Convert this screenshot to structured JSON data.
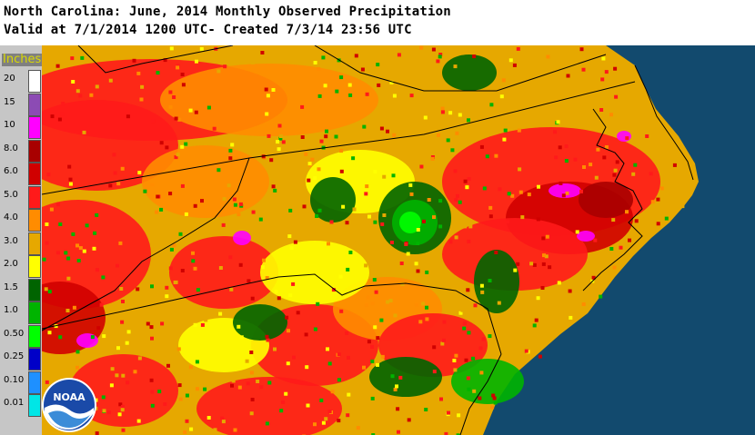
{
  "header": {
    "title_line1": "North Carolina: June, 2014 Monthly Observed Precipitation",
    "title_line2": "Valid at 7/1/2014 1200 UTC- Created 7/3/14 23:56 UTC"
  },
  "legend": {
    "unit": "Inches",
    "items": [
      {
        "label": "20",
        "color": "#ffffff"
      },
      {
        "label": "15",
        "color": "#8c4bb4"
      },
      {
        "label": "10",
        "color": "#ff00ff"
      },
      {
        "label": "8.0",
        "color": "#a80000"
      },
      {
        "label": "6.0",
        "color": "#d00000"
      },
      {
        "label": "5.0",
        "color": "#ff1a1a"
      },
      {
        "label": "4.0",
        "color": "#ff8c00"
      },
      {
        "label": "3.0",
        "color": "#e6a800"
      },
      {
        "label": "2.0",
        "color": "#ffff00"
      },
      {
        "label": "1.5",
        "color": "#006400"
      },
      {
        "label": "1.0",
        "color": "#00b400"
      },
      {
        "label": "0.50",
        "color": "#00ff00"
      },
      {
        "label": "0.25",
        "color": "#0000c8"
      },
      {
        "label": "0.10",
        "color": "#1e90ff"
      },
      {
        "label": "0.01",
        "color": "#00e6e6"
      }
    ]
  },
  "map": {
    "ocean_color": "#124a6e",
    "land_base_color": "#e6a800"
  },
  "logo": {
    "text": "NOAA"
  }
}
